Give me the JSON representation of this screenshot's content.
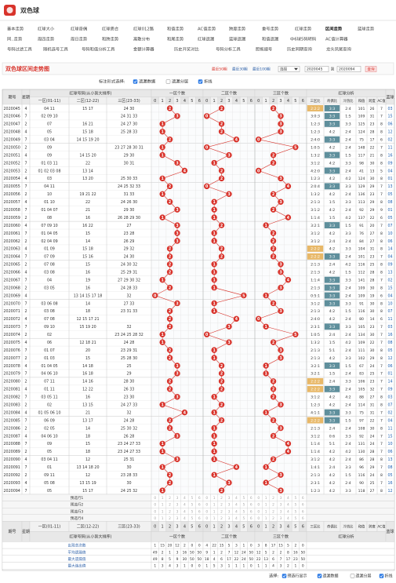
{
  "header": {
    "title": "双色球"
  },
  "nav": {
    "rows": [
      [
        "基本走势",
        "红球大小",
        "红球奇偶",
        "红球质合",
        "红球012路",
        "和值走势",
        "AC值走势",
        "跨度走势",
        "重号走势",
        "红球走势",
        "区间走势",
        "蓝球走势"
      ],
      [
        "同..走势",
        "周四走势",
        "周日走势",
        "和跨走势",
        "离散分布",
        "和尾走势",
        "红球遗漏",
        "蓝球遗漏",
        "和值遗漏",
        "中6球5码转码",
        "AC值计算器"
      ],
      [
        "号码过滤工具",
        "随机选号工具",
        "号码和值分析工具",
        "金额计算器",
        "历史开奖对比",
        "号码分析工具",
        "胆拖缩号",
        "历史同期查询",
        "龙头凤尾查询"
      ]
    ],
    "active": [
      0,
      10
    ]
  },
  "toolbar": {
    "title": "双色球区间走势图",
    "quick": [
      "最近50期",
      "最近30期",
      "最近100期"
    ],
    "select_label": "选择",
    "from": "2020045",
    "to_label": "到",
    "to": "2020094",
    "button": "查询"
  },
  "options": {
    "label": "标注形式选择:",
    "items": [
      {
        "text": "遗漏数据",
        "checked": true
      },
      {
        "text": "遗漏分层",
        "checked": false
      },
      {
        "text": "折线",
        "checked": true
      }
    ]
  },
  "table": {
    "headers": {
      "issue": "期号",
      "week": "星期",
      "red": "红球号码(从小到大排序)",
      "zones": [
        "一区(01-11)",
        "二区(12-22)",
        "三区(23-33)"
      ],
      "count_groups": [
        "一区个数",
        "二区个数",
        "三区个数"
      ],
      "count_cols": [
        0,
        1,
        2,
        3,
        4,
        5,
        6
      ],
      "analysis": "红球分析",
      "analysis_cols": [
        "三区比",
        "奇偶比",
        "冷热比",
        "和值",
        "跨度",
        "AC值"
      ],
      "blue": "蓝球"
    },
    "rows": [
      [
        "2020045",
        "4",
        "04 11",
        "15 17",
        "24 30",
        [
          2,
          2,
          2
        ],
        "2:2:2",
        "3:3",
        "2:4",
        101,
        26,
        7,
        "03"
      ],
      [
        "2020046",
        "7",
        "02 09 10",
        "",
        "24 31 33",
        [
          3,
          0,
          3
        ],
        "3:0:3",
        "3:3",
        "1:5",
        109,
        31,
        7,
        "15"
      ],
      [
        "2020047",
        "2",
        "07",
        "16 21",
        "24 27 30",
        [
          1,
          2,
          3
        ],
        "1:2:3",
        "3:3",
        "3:3",
        125,
        23,
        8,
        "06"
      ],
      [
        "2020048",
        "4",
        "05",
        "15 18",
        "25 28 33",
        [
          1,
          2,
          3
        ],
        "1:2:3",
        "4:2",
        "2:4",
        124,
        28,
        8,
        "12"
      ],
      [
        "2020049",
        "7",
        "03 04",
        "14 15 19 20",
        "",
        [
          2,
          4,
          0
        ],
        "2:4:0",
        "3:3",
        "2:4",
        75,
        17,
        6,
        "02"
      ],
      [
        "2020050",
        "2",
        "09",
        "",
        "23 27 28 30 31",
        [
          1,
          0,
          5
        ],
        "1:0:5",
        "4:2",
        "2:4",
        148,
        22,
        7,
        "11"
      ],
      [
        "2020051",
        "4",
        "09",
        "14 15 20",
        "29 30",
        [
          1,
          3,
          2
        ],
        "1:3:2",
        "3:3",
        "1:5",
        117,
        21,
        8,
        "16"
      ],
      [
        "2020052",
        "7",
        "01 03 11",
        "22",
        "30 31",
        [
          3,
          1,
          2
        ],
        "3:1:2",
        "4:2",
        "3:3",
        98,
        30,
        8,
        "09"
      ],
      [
        "2020053",
        "2",
        "01 02 03 08",
        "13 14",
        "",
        [
          4,
          2,
          0
        ],
        "4:2:0",
        "3:3",
        "2:4",
        41,
        13,
        5,
        "04"
      ],
      [
        "2020054",
        "4",
        "03",
        "13 20",
        "25 30 33",
        [
          1,
          2,
          3
        ],
        "1:2:3",
        "4:2",
        "4:2",
        124,
        30,
        8,
        "01"
      ],
      [
        "2020055",
        "7",
        "04 11",
        "",
        "24 25 32 33",
        [
          2,
          0,
          4
        ],
        "2:0:4",
        "3:3",
        "3:3",
        129,
        29,
        7,
        "13"
      ],
      [
        "2020056",
        "2",
        "10",
        "19 21 22",
        "31 33",
        [
          1,
          3,
          2
        ],
        "1:3:2",
        "4:2",
        "2:4",
        136,
        23,
        7,
        "05"
      ],
      [
        "2020057",
        "4",
        "01 10",
        "22",
        "24 26 30",
        [
          2,
          1,
          3
        ],
        "2:1:3",
        "1:5",
        "3:3",
        113,
        29,
        8,
        "08"
      ],
      [
        "2020058",
        "7",
        "01 04 07",
        "21",
        "29 30",
        [
          3,
          1,
          2
        ],
        "3:1:2",
        "4:2",
        "2:4",
        92,
        29,
        9,
        "01"
      ],
      [
        "2020059",
        "2",
        "08",
        "16",
        "26 28 29 30",
        [
          1,
          1,
          4
        ],
        "1:1:4",
        "1:5",
        "4:2",
        137,
        22,
        6,
        "05"
      ],
      [
        "2020060",
        "4",
        "07 09 10",
        "16 22",
        "27",
        [
          3,
          2,
          1
        ],
        "3:2:1",
        "3:3",
        "1:5",
        91,
        20,
        7,
        "07"
      ],
      [
        "2020061",
        "7",
        "01 04 05",
        "15",
        "23 28",
        [
          3,
          1,
          2
        ],
        "3:1:2",
        "4:2",
        "3:3",
        76,
        27,
        8,
        "10"
      ],
      [
        "2020062",
        "2",
        "02 04 09",
        "14",
        "26 29",
        [
          3,
          1,
          2
        ],
        "3:1:2",
        "2:4",
        "2:4",
        84,
        27,
        8,
        "06"
      ],
      [
        "2020063",
        "4",
        "01 09",
        "15 18",
        "29 32",
        [
          2,
          2,
          2
        ],
        "2:2:2",
        "4:2",
        "3:3",
        104,
        31,
        8,
        "14"
      ],
      [
        "2020064",
        "7",
        "07 09",
        "15 16",
        "24 30",
        [
          2,
          2,
          2
        ],
        "2:2:2",
        "3:3",
        "2:4",
        101,
        23,
        7,
        "04"
      ],
      [
        "2020065",
        "2",
        "07 08",
        "15",
        "24 30 32",
        [
          2,
          1,
          3
        ],
        "2:1:3",
        "2:4",
        "4:2",
        116,
        25,
        8,
        "09"
      ],
      [
        "2020066",
        "4",
        "03 08",
        "16",
        "25 29 31",
        [
          2,
          1,
          3
        ],
        "2:1:3",
        "4:2",
        "1:5",
        112,
        28,
        8,
        "13"
      ],
      [
        "2020067",
        "7",
        "04",
        "19",
        "27 29 30 32",
        [
          1,
          1,
          4
        ],
        "1:1:4",
        "3:3",
        "3:3",
        141,
        28,
        7,
        "02"
      ],
      [
        "2020068",
        "2",
        "03 05",
        "16",
        "24 28 33",
        [
          2,
          1,
          3
        ],
        "2:1:3",
        "3:3",
        "2:4",
        109,
        30,
        8,
        "15"
      ],
      [
        "2020069",
        "4",
        "",
        "13 14 15 17 18",
        "32",
        [
          0,
          5,
          1
        ],
        "0:5:1",
        "3:3",
        "2:4",
        109,
        19,
        6,
        "04"
      ],
      [
        "2020070",
        "7",
        "03 06 08",
        "14",
        "27 33",
        [
          3,
          1,
          2
        ],
        "3:1:2",
        "3:3",
        "3:3",
        91,
        30,
        8,
        "10"
      ],
      [
        "2020071",
        "2",
        "03 08",
        "18",
        "23 31 33",
        [
          2,
          1,
          3
        ],
        "2:1:3",
        "4:2",
        "1:5",
        116,
        30,
        8,
        "07"
      ],
      [
        "2020072",
        "4",
        "07 08",
        "12 15 17 21",
        "",
        [
          2,
          4,
          0
        ],
        "2:4:0",
        "4:2",
        "2:4",
        80,
        14,
        6,
        "11"
      ],
      [
        "2020073",
        "7",
        "09 10",
        "15 19 20",
        "32",
        [
          2,
          3,
          1
        ],
        "2:3:1",
        "3:3",
        "3:3",
        105,
        23,
        7,
        "03"
      ],
      [
        "2020074",
        "2",
        "02",
        "",
        "23 24 25 28 32",
        [
          1,
          0,
          5
        ],
        "1:0:5",
        "2:4",
        "2:4",
        134,
        30,
        7,
        "16"
      ],
      [
        "2020075",
        "4",
        "06",
        "12 18 21",
        "24 28",
        [
          1,
          3,
          2
        ],
        "1:3:2",
        "1:5",
        "4:2",
        109,
        22,
        7,
        "08"
      ],
      [
        "2020076",
        "7",
        "01 07",
        "20",
        "23 29 31",
        [
          2,
          1,
          3
        ],
        "2:1:3",
        "5:1",
        "2:4",
        111,
        30,
        8,
        "05"
      ],
      [
        "2020077",
        "2",
        "01 03",
        "15",
        "25 28 30",
        [
          2,
          1,
          3
        ],
        "2:1:3",
        "4:2",
        "3:3",
        102,
        29,
        8,
        "12"
      ],
      [
        "2020078",
        "4",
        "01 04 05",
        "14 18",
        "25",
        [
          3,
          2,
          1
        ],
        "3:2:1",
        "3:3",
        "1:5",
        67,
        24,
        7,
        "06"
      ],
      [
        "2020079",
        "7",
        "04 06 10",
        "16 18",
        "29",
        [
          3,
          2,
          1
        ],
        "3:2:1",
        "1:5",
        "2:4",
        83,
        25,
        7,
        "01"
      ],
      [
        "2020080",
        "2",
        "07 11",
        "14 16",
        "28 30",
        [
          2,
          2,
          2
        ],
        "2:2:2",
        "2:4",
        "3:3",
        106,
        23,
        7,
        "14"
      ],
      [
        "2020081",
        "4",
        "01 11",
        "12 22",
        "26 33",
        [
          2,
          2,
          2
        ],
        "2:2:2",
        "3:3",
        "2:4",
        105,
        32,
        7,
        "09"
      ],
      [
        "2020082",
        "7",
        "03 05 11",
        "16",
        "23 30",
        [
          3,
          1,
          2
        ],
        "3:1:2",
        "4:2",
        "4:2",
        88,
        27,
        8,
        "03"
      ],
      [
        "2020083",
        "2",
        "02",
        "13 15",
        "24 27 33",
        [
          1,
          2,
          3
        ],
        "1:2:3",
        "4:2",
        "2:4",
        114,
        31,
        8,
        "07"
      ],
      [
        "2020084",
        "4",
        "01 05 06 10",
        "21",
        "32",
        [
          4,
          1,
          1
        ],
        "4:1:1",
        "3:3",
        "3:3",
        75,
        31,
        7,
        "02"
      ],
      [
        "2020085",
        "7",
        "06 09",
        "13 17",
        "24 28",
        [
          2,
          2,
          2
        ],
        "2:2:2",
        "3:3",
        "1:5",
        97,
        22,
        7,
        "04"
      ],
      [
        "2020086",
        "2",
        "02 05",
        "14",
        "25 30 32",
        [
          2,
          1,
          3
        ],
        "2:1:3",
        "2:4",
        "2:4",
        108,
        30,
        8,
        "11"
      ],
      [
        "2020087",
        "4",
        "04 06 10",
        "18",
        "26 28",
        [
          3,
          1,
          2
        ],
        "3:1:2",
        "0:6",
        "3:3",
        92,
        24,
        7,
        "15"
      ],
      [
        "2020088",
        "7",
        "09",
        "15",
        "23 24 27 33",
        [
          1,
          1,
          4
        ],
        "1:1:4",
        "5:1",
        "2:4",
        131,
        24,
        7,
        "10"
      ],
      [
        "2020089",
        "2",
        "05",
        "18",
        "23 24 27 33",
        [
          1,
          1,
          4
        ],
        "1:1:4",
        "4:2",
        "4:2",
        130,
        28,
        7,
        "06"
      ],
      [
        "2020090",
        "4",
        "03 04 11",
        "12",
        "25 31",
        [
          3,
          1,
          2
        ],
        "3:1:2",
        "4:2",
        "2:4",
        86,
        28,
        8,
        "13"
      ],
      [
        "2020091",
        "7",
        "01",
        "13 14 18 20",
        "30",
        [
          1,
          4,
          1
        ],
        "1:4:1",
        "2:4",
        "3:3",
        96,
        29,
        7,
        "08"
      ],
      [
        "2020092",
        "2",
        "09 11",
        "12",
        "23 28 33",
        [
          2,
          1,
          3
        ],
        "2:1:3",
        "4:2",
        "1:5",
        116,
        24,
        8,
        "05"
      ],
      [
        "2020093",
        "4",
        "05 08",
        "13 15 19",
        "30",
        [
          2,
          3,
          1
        ],
        "2:3:1",
        "4:2",
        "2:4",
        90,
        25,
        7,
        "16"
      ],
      [
        "2020094",
        "7",
        "05",
        "15 17",
        "24 25 32",
        [
          1,
          2,
          3
        ],
        "1:2:3",
        "4:2",
        "3:3",
        118,
        27,
        8,
        "12"
      ]
    ],
    "preselect": [
      "预选行1",
      "预选行2",
      "预选行3",
      "预选行4"
    ],
    "stats": [
      {
        "label": "出现总次数",
        "values": [
          1,
          15,
          20,
          12,
          2,
          0,
          0,
          4,
          22,
          15,
          5,
          3,
          1,
          0,
          3,
          8,
          17,
          15,
          5,
          2,
          0
        ]
      },
      {
        "label": "平均遗漏值",
        "values": [
          49,
          2,
          1,
          3,
          16,
          50,
          50,
          9,
          1,
          2,
          7,
          12,
          24,
          50,
          12,
          5,
          2,
          2,
          8,
          16,
          50
        ]
      },
      {
        "label": "最大遗漏值",
        "values": [
          49,
          8,
          5,
          9,
          30,
          50,
          50,
          18,
          4,
          6,
          17,
          22,
          24,
          50,
          22,
          13,
          6,
          7,
          17,
          23,
          50
        ]
      },
      {
        "label": "最大连出值",
        "values": [
          1,
          3,
          4,
          3,
          1,
          0,
          0,
          1,
          5,
          3,
          1,
          1,
          1,
          0,
          1,
          1,
          4,
          3,
          2,
          1,
          0
        ]
      }
    ]
  },
  "footer_options": {
    "label": "选择:",
    "items": [
      {
        "text": "预选行显示",
        "checked": true
      },
      {
        "text": "遗漏数据",
        "checked": true
      },
      {
        "text": "遗漏分层",
        "checked": false
      },
      {
        "text": "折线",
        "checked": true
      }
    ]
  }
}
